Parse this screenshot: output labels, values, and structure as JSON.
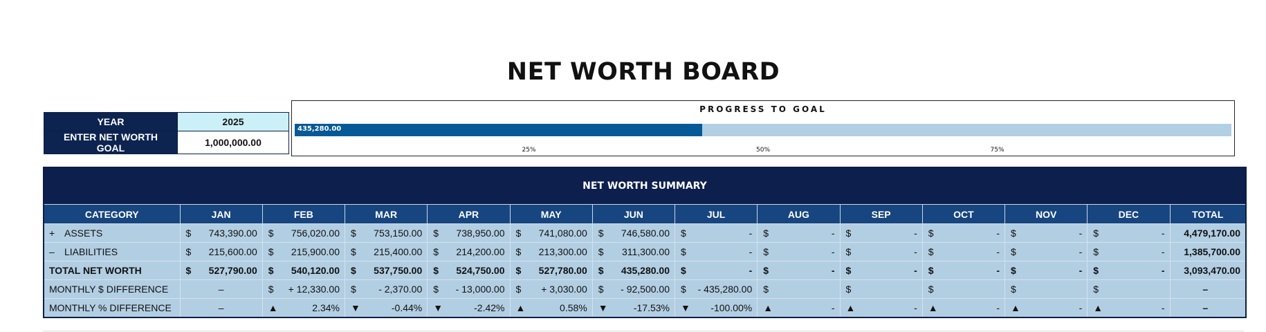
{
  "title": "NET WORTH BOARD",
  "goal": {
    "year_label": "YEAR",
    "year_value": "2025",
    "goal_label": "ENTER NET WORTH GOAL",
    "goal_value": "1,000,000.00"
  },
  "progress": {
    "title": "PROGRESS TO GOAL",
    "current_label": "435,280.00",
    "fraction": 0.435,
    "ticks": [
      {
        "label": "25%",
        "frac": 0.25
      },
      {
        "label": "50%",
        "frac": 0.5
      },
      {
        "label": "75%",
        "frac": 0.75
      }
    ]
  },
  "summary": {
    "title": "NET WORTH SUMMARY",
    "columns": [
      "CATEGORY",
      "JAN",
      "FEB",
      "MAR",
      "APR",
      "MAY",
      "JUN",
      "JUL",
      "AUG",
      "SEP",
      "OCT",
      "NOV",
      "DEC",
      "TOTAL"
    ],
    "rows": [
      {
        "sign": "+",
        "label": "ASSETS",
        "bold": false,
        "cells": [
          {
            "pre": "$",
            "val": "743,390.00"
          },
          {
            "pre": "$",
            "val": "756,020.00"
          },
          {
            "pre": "$",
            "val": "753,150.00"
          },
          {
            "pre": "$",
            "val": "738,950.00"
          },
          {
            "pre": "$",
            "val": "741,080.00"
          },
          {
            "pre": "$",
            "val": "746,580.00"
          },
          {
            "pre": "$",
            "val": "-"
          },
          {
            "pre": "$",
            "val": "-"
          },
          {
            "pre": "$",
            "val": "-"
          },
          {
            "pre": "$",
            "val": "-"
          },
          {
            "pre": "$",
            "val": "-"
          },
          {
            "pre": "$",
            "val": "-"
          }
        ],
        "total": "4,479,170.00"
      },
      {
        "sign": "–",
        "label": "LIABILITIES",
        "bold": false,
        "cells": [
          {
            "pre": "$",
            "val": "215,600.00"
          },
          {
            "pre": "$",
            "val": "215,900.00"
          },
          {
            "pre": "$",
            "val": "215,400.00"
          },
          {
            "pre": "$",
            "val": "214,200.00"
          },
          {
            "pre": "$",
            "val": "213,300.00"
          },
          {
            "pre": "$",
            "val": "311,300.00"
          },
          {
            "pre": "$",
            "val": "-"
          },
          {
            "pre": "$",
            "val": "-"
          },
          {
            "pre": "$",
            "val": "-"
          },
          {
            "pre": "$",
            "val": "-"
          },
          {
            "pre": "$",
            "val": "-"
          },
          {
            "pre": "$",
            "val": "-"
          }
        ],
        "total": "1,385,700.00"
      },
      {
        "sign": "",
        "label": "TOTAL NET WORTH",
        "bold": true,
        "cells": [
          {
            "pre": "$",
            "val": "527,790.00"
          },
          {
            "pre": "$",
            "val": "540,120.00"
          },
          {
            "pre": "$",
            "val": "537,750.00"
          },
          {
            "pre": "$",
            "val": "524,750.00"
          },
          {
            "pre": "$",
            "val": "527,780.00"
          },
          {
            "pre": "$",
            "val": "435,280.00"
          },
          {
            "pre": "$",
            "val": "-"
          },
          {
            "pre": "$",
            "val": "-"
          },
          {
            "pre": "$",
            "val": "-"
          },
          {
            "pre": "$",
            "val": "-"
          },
          {
            "pre": "$",
            "val": "-"
          },
          {
            "pre": "$",
            "val": "-"
          }
        ],
        "total": "3,093,470.00"
      },
      {
        "sign": "",
        "label": "MONTHLY $ DIFFERENCE",
        "bold": false,
        "cells": [
          {
            "pre": "",
            "val": "–",
            "center": true
          },
          {
            "pre": "$",
            "val": "+ 12,330.00"
          },
          {
            "pre": "$",
            "val": "- 2,370.00"
          },
          {
            "pre": "$",
            "val": "- 13,000.00"
          },
          {
            "pre": "$",
            "val": "+ 3,030.00"
          },
          {
            "pre": "$",
            "val": "- 92,500.00"
          },
          {
            "pre": "$",
            "val": "- 435,280.00"
          },
          {
            "pre": "$",
            "val": ""
          },
          {
            "pre": "$",
            "val": ""
          },
          {
            "pre": "$",
            "val": ""
          },
          {
            "pre": "$",
            "val": ""
          },
          {
            "pre": "$",
            "val": ""
          }
        ],
        "total": "–"
      },
      {
        "sign": "",
        "label": "MONTHLY % DIFFERENCE",
        "bold": false,
        "cells": [
          {
            "pre": "",
            "val": "–",
            "center": true
          },
          {
            "pre": "▲",
            "val": "2.34%"
          },
          {
            "pre": "▼",
            "val": "-0.44%"
          },
          {
            "pre": "▼",
            "val": "-2.42%"
          },
          {
            "pre": "▲",
            "val": "0.58%"
          },
          {
            "pre": "▼",
            "val": "-17.53%"
          },
          {
            "pre": "▼",
            "val": "-100.00%"
          },
          {
            "pre": "▲",
            "val": "-"
          },
          {
            "pre": "▲",
            "val": "-"
          },
          {
            "pre": "▲",
            "val": "-"
          },
          {
            "pre": "▲",
            "val": "-"
          },
          {
            "pre": "▲",
            "val": "-"
          }
        ],
        "total": "–"
      }
    ]
  }
}
